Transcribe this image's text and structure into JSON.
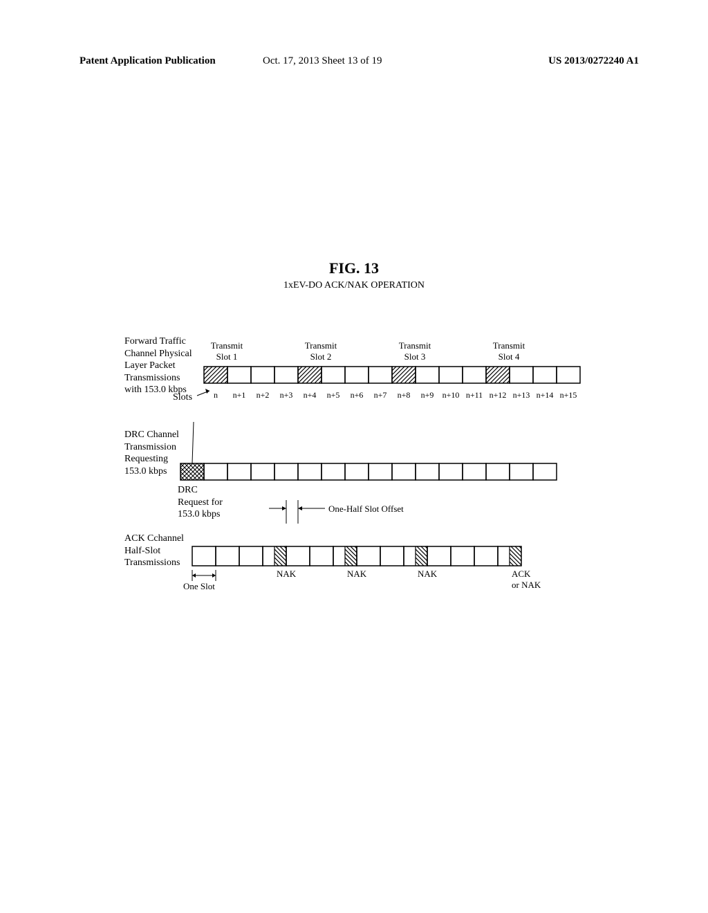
{
  "header": {
    "left": "Patent Application Publication",
    "center": "Oct. 17, 2013   Sheet 13 of 19",
    "right": "US 2013/0272240 A1"
  },
  "figure": {
    "title": "FIG. 13",
    "subtitle": "1xEV-DO ACK/NAK OPERATION"
  },
  "labels": {
    "row1": "Forward Traffic\nChannel Physical\nLayer Packet\nTransmissions\nwith 153.0 kbps",
    "row2": "DRC Channel\nTransmission\nRequesting\n153.0 kbps",
    "row3": "ACK Cchannel\nHalf-Slot\nTransmissions",
    "slotsTag": "Slots",
    "drcNote": "DRC\nRequest for\n153.0 kbps",
    "halfSlot": "One-Half Slot Offset",
    "oneSlot": "One Slot"
  },
  "transmit": {
    "t1": "Transmit\nSlot 1",
    "t2": "Transmit\nSlot 2",
    "t3": "Transmit\nSlot 3",
    "t4": "Transmit\nSlot 4"
  },
  "ticks": [
    "n",
    "n+1",
    "n+2",
    "n+3",
    "n+4",
    "n+5",
    "n+6",
    "n+7",
    "n+8",
    "n+9",
    "n+10",
    "n+11",
    "n+12",
    "n+13",
    "n+14",
    "n+15"
  ],
  "ack": {
    "nak": "NAK",
    "ack": "ACK\nor NAK"
  },
  "geom": {
    "startX": 215,
    "slotW": 34,
    "row1Y": 60,
    "row1H": 24,
    "row2Y": 200,
    "row2H": 24,
    "row3Y": 320,
    "row3H": 28,
    "halfSlotOffset": 17
  },
  "colors": {
    "stroke": "#000000",
    "bg": "#ffffff"
  }
}
